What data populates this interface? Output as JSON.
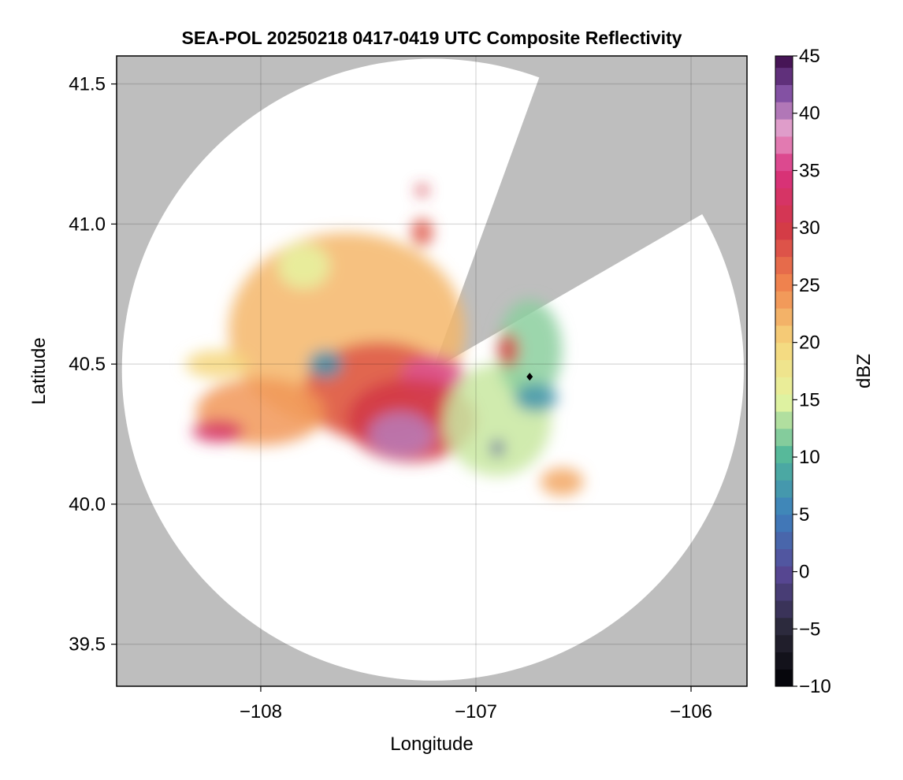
{
  "chart_data": {
    "type": "heatmap",
    "title": "SEA-POL 20250218 0417-0419 UTC Composite Reflectivity",
    "xlabel": "Longitude",
    "ylabel": "Latitude",
    "xlim": [
      -108.67,
      -105.74
    ],
    "ylim": [
      39.35,
      41.6
    ],
    "xticks": [
      -108,
      -107,
      -106
    ],
    "xtick_labels": [
      "−108",
      "−107",
      "−106"
    ],
    "yticks": [
      39.5,
      40.0,
      40.5,
      41.0,
      41.5
    ],
    "ytick_labels": [
      "39.5",
      "40.0",
      "40.5",
      "41.0",
      "41.5"
    ],
    "grid": true,
    "radar_center": {
      "lon": -107.2,
      "lat": 40.48
    },
    "radar_range_deg_lat": 1.11,
    "blanked_sectors_deg_from_north": [
      [
        20,
        60
      ]
    ],
    "marker": {
      "lon": -106.75,
      "lat": 40.455,
      "symbol": "diamond",
      "color": "#000000"
    },
    "no_data_color": "#bebebe",
    "in_range_background": "#ffffff",
    "colorbar": {
      "label": "dBZ",
      "min": -10,
      "max": 45,
      "step": 1.5,
      "ticks": [
        -10,
        -5,
        0,
        5,
        10,
        15,
        20,
        25,
        30,
        35,
        40,
        45
      ],
      "tick_labels": [
        "−10",
        "−5",
        "0",
        "5",
        "10",
        "15",
        "20",
        "25",
        "30",
        "35",
        "40",
        "45"
      ],
      "colormap_stops": [
        [
          -10,
          "#000004"
        ],
        [
          -5,
          "#2a2838"
        ],
        [
          0,
          "#584896"
        ],
        [
          5,
          "#3d7fbd"
        ],
        [
          10,
          "#4fb69a"
        ],
        [
          15,
          "#e6f5a1"
        ],
        [
          20,
          "#f6d67d"
        ],
        [
          25,
          "#f0864e"
        ],
        [
          30,
          "#d23846"
        ],
        [
          35,
          "#d9317e"
        ],
        [
          38.5,
          "#e7a3cd"
        ],
        [
          42,
          "#7b4ba0"
        ],
        [
          45,
          "#3b0a47"
        ]
      ]
    },
    "echo_regions": [
      {
        "lon": -107.6,
        "lat": 40.62,
        "rx": 0.55,
        "ry": 0.35,
        "dbz": 22
      },
      {
        "lon": -107.45,
        "lat": 40.4,
        "rx": 0.35,
        "ry": 0.18,
        "dbz": 28
      },
      {
        "lon": -107.2,
        "lat": 40.45,
        "rx": 0.15,
        "ry": 0.08,
        "dbz": 36
      },
      {
        "lon": -107.3,
        "lat": 40.3,
        "rx": 0.3,
        "ry": 0.15,
        "dbz": 30
      },
      {
        "lon": -107.35,
        "lat": 40.25,
        "rx": 0.15,
        "ry": 0.08,
        "dbz": 40
      },
      {
        "lon": -108.0,
        "lat": 40.33,
        "rx": 0.3,
        "ry": 0.12,
        "dbz": 24
      },
      {
        "lon": -108.2,
        "lat": 40.26,
        "rx": 0.12,
        "ry": 0.04,
        "dbz": 33
      },
      {
        "lon": -106.9,
        "lat": 40.3,
        "rx": 0.25,
        "ry": 0.2,
        "dbz": 14
      },
      {
        "lon": -106.75,
        "lat": 40.55,
        "rx": 0.15,
        "ry": 0.18,
        "dbz": 12
      },
      {
        "lon": -106.85,
        "lat": 40.55,
        "rx": 0.05,
        "ry": 0.06,
        "dbz": 29
      },
      {
        "lon": -107.7,
        "lat": 40.5,
        "rx": 0.08,
        "ry": 0.05,
        "dbz": 7
      },
      {
        "lon": -106.72,
        "lat": 40.38,
        "rx": 0.1,
        "ry": 0.05,
        "dbz": 7
      },
      {
        "lon": -106.9,
        "lat": 40.2,
        "rx": 0.03,
        "ry": 0.03,
        "dbz": 1
      },
      {
        "lon": -107.25,
        "lat": 41.12,
        "rx": 0.03,
        "ry": 0.02,
        "dbz": 30
      },
      {
        "lon": -107.25,
        "lat": 40.97,
        "rx": 0.05,
        "ry": 0.05,
        "dbz": 28
      },
      {
        "lon": -106.6,
        "lat": 40.08,
        "rx": 0.1,
        "ry": 0.05,
        "dbz": 23
      },
      {
        "lon": -107.8,
        "lat": 40.85,
        "rx": 0.12,
        "ry": 0.08,
        "dbz": 15
      },
      {
        "lon": -108.2,
        "lat": 40.5,
        "rx": 0.15,
        "ry": 0.05,
        "dbz": 20
      }
    ]
  }
}
